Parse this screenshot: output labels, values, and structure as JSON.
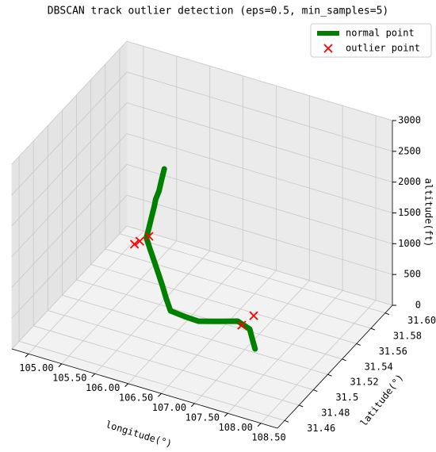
{
  "chart_data": {
    "type": "scatter3d",
    "title": "DBSCAN track outlier detection (eps=0.5, min_samples=5)",
    "x_label": "longitude(°)",
    "y_label": "latitude(°)",
    "z_label": "altitude(ft)",
    "xlim": [
      104.75,
      108.75
    ],
    "ylim": [
      31.45,
      31.61
    ],
    "zlim": [
      0,
      3000
    ],
    "xticks": [
      {
        "value": 105,
        "label": "105.00"
      },
      {
        "value": 105.5,
        "label": "105.50"
      },
      {
        "value": 106,
        "label": "106.00"
      },
      {
        "value": 106.5,
        "label": "106.50"
      },
      {
        "value": 107,
        "label": "107.00"
      },
      {
        "value": 107.5,
        "label": "107.50"
      },
      {
        "value": 108,
        "label": "108.00"
      },
      {
        "value": 108.5,
        "label": "108.50"
      }
    ],
    "yticks": [
      31.46,
      31.48,
      31.5,
      31.52,
      31.54,
      31.56,
      31.58,
      {
        "value": 31.6,
        "label": "31.60"
      }
    ],
    "zticks": [
      0,
      500,
      1000,
      1500,
      2000,
      2500,
      3000
    ],
    "grid": true,
    "legend": "upper right",
    "series": [
      {
        "name": "normal point",
        "color": "green",
        "style": "line",
        "x": [
          106.18,
          106.14,
          106.1,
          106.05,
          106.03,
          105.99,
          105.95,
          105.91,
          105.97,
          106.03,
          106.09,
          106.15,
          106.25,
          106.36,
          106.57,
          106.78,
          106.99,
          107.2,
          107.38,
          107.55,
          107.72
        ],
        "y": [
          31.53,
          31.53,
          31.53,
          31.53,
          31.53,
          31.53,
          31.53,
          31.53,
          31.53,
          31.53,
          31.53,
          31.53,
          31.526,
          31.522,
          31.522,
          31.522,
          31.53,
          31.538,
          31.538,
          31.526,
          31.514
        ],
        "z": [
          2385,
          2200,
          2000,
          1850,
          1733,
          1550,
          1360,
          1179,
          1000,
          832,
          660,
          484,
          360,
          238,
          215,
          205,
          170,
          142,
          70,
          110,
          158
        ]
      },
      {
        "name": "outlier point",
        "color": "red",
        "style": "x",
        "x": [
          105.73,
          105.81,
          105.95,
          107.26,
          107.44
        ],
        "y": [
          31.53,
          31.53,
          31.53,
          31.538,
          31.538
        ],
        "z": [
          1018,
          1093,
          1217,
          97,
          308
        ]
      }
    ]
  }
}
